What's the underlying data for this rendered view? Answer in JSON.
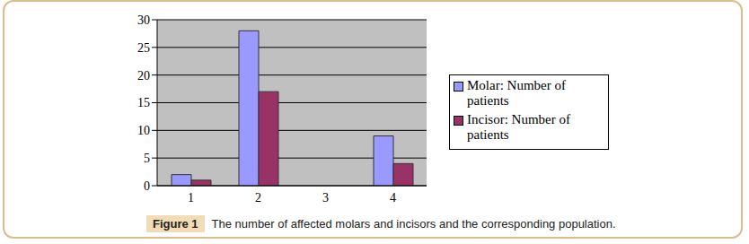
{
  "chart_data": {
    "type": "bar",
    "title": "The number of affected molars and incisors and the corresponding population.",
    "annotations": [
      "Figure 1"
    ],
    "categories": [
      "1",
      "2",
      "3",
      "4"
    ],
    "series": [
      {
        "name": "Molar: Number of patients",
        "color": "#9999ff",
        "values": [
          2,
          28,
          0,
          9
        ]
      },
      {
        "name": "Incisor: Number of patients",
        "color": "#993366",
        "values": [
          1,
          17,
          0,
          4
        ]
      }
    ],
    "ylim": [
      0,
      30
    ],
    "yticks": [
      0,
      5,
      10,
      15,
      20,
      25,
      30
    ],
    "grid": true,
    "legend": "right"
  }
}
